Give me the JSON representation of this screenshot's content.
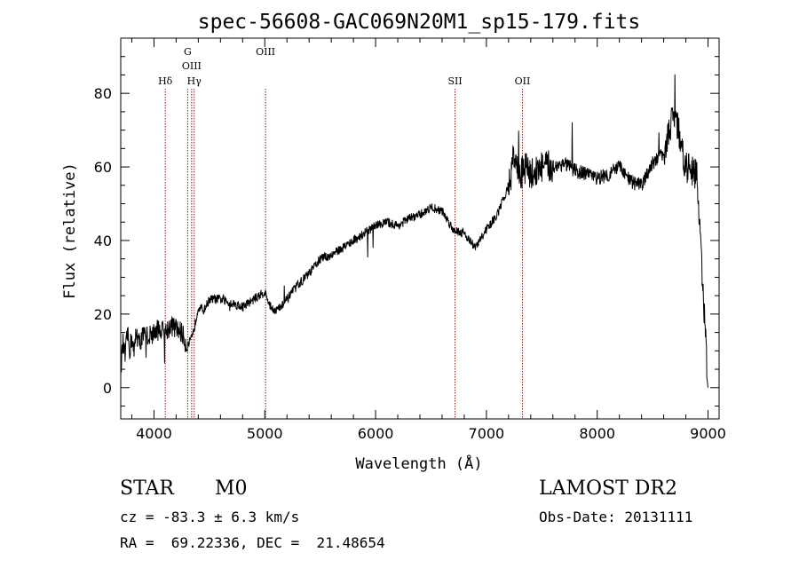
{
  "chart_data": {
    "type": "line",
    "title": "spec-56608-GAC069N20M1_sp15-179.fits",
    "xlabel": "Wavelength (Å)",
    "ylabel": "Flux (relative)",
    "xlim": [
      3700,
      9100
    ],
    "ylim": [
      -8.5,
      95
    ],
    "xticks": [
      4000,
      5000,
      6000,
      7000,
      8000,
      9000
    ],
    "yticks": [
      0,
      20,
      40,
      60,
      80
    ],
    "grid": false,
    "line_color": "#000000",
    "marker_color": "#8b1a1a",
    "lines": [
      {
        "label": "Hδ",
        "x": 4102,
        "row": 3
      },
      {
        "label": "G",
        "x": 4304,
        "row": 1
      },
      {
        "label": "OIII",
        "x": 4340,
        "row": 2
      },
      {
        "label": "Hγ",
        "x": 4363,
        "row": 3
      },
      {
        "label": "OIII",
        "x": 5007,
        "row": 1
      },
      {
        "label": "SII",
        "x": 6717,
        "row": 3
      },
      {
        "label": "OII",
        "x": 7325,
        "row": 3
      }
    ],
    "series": [
      {
        "x": [
          3700,
          3720,
          3740,
          3760,
          3780,
          3800,
          3820,
          3840,
          3860,
          3880,
          3900,
          3950,
          4000,
          4050,
          4100,
          4150,
          4200,
          4250,
          4300,
          4350,
          4400,
          4450,
          4500,
          4600,
          4700,
          4800,
          4900,
          5000,
          5050,
          5100,
          5150,
          5200,
          5300,
          5400,
          5500,
          5600,
          5700,
          5800,
          5900,
          6000,
          6100,
          6200,
          6300,
          6400,
          6500,
          6600,
          6700,
          6800,
          6900,
          7000,
          7100,
          7200,
          7250,
          7300,
          7350,
          7400,
          7500,
          7600,
          7700,
          7800,
          7900,
          8000,
          8100,
          8200,
          8300,
          8400,
          8500,
          8600,
          8700,
          8800,
          8900,
          9000
        ],
        "y": [
          5,
          12,
          8,
          15,
          10,
          14,
          9,
          16,
          12,
          13,
          14,
          14,
          15,
          16,
          15,
          17,
          16,
          15,
          11,
          14,
          22,
          21,
          24,
          24,
          23,
          22,
          24,
          26,
          22,
          21,
          22,
          24,
          28,
          31,
          35,
          36,
          38,
          40,
          42,
          44,
          45,
          44,
          46,
          47,
          49,
          48,
          43,
          42,
          38,
          43,
          47,
          55,
          63,
          57,
          60,
          58,
          60,
          60,
          61,
          59,
          58,
          57,
          58,
          60,
          56,
          55,
          61,
          64,
          75,
          60,
          58,
          0
        ]
      }
    ]
  },
  "info": {
    "obj_class": "STAR",
    "obj_subclass": "M0",
    "survey": "LAMOST DR2",
    "cz": "cz = -83.3 ± 6.3 km/s",
    "obs_date": "Obs-Date: 20131111",
    "radec": "RA =  69.22336, DEC =  21.48654"
  }
}
